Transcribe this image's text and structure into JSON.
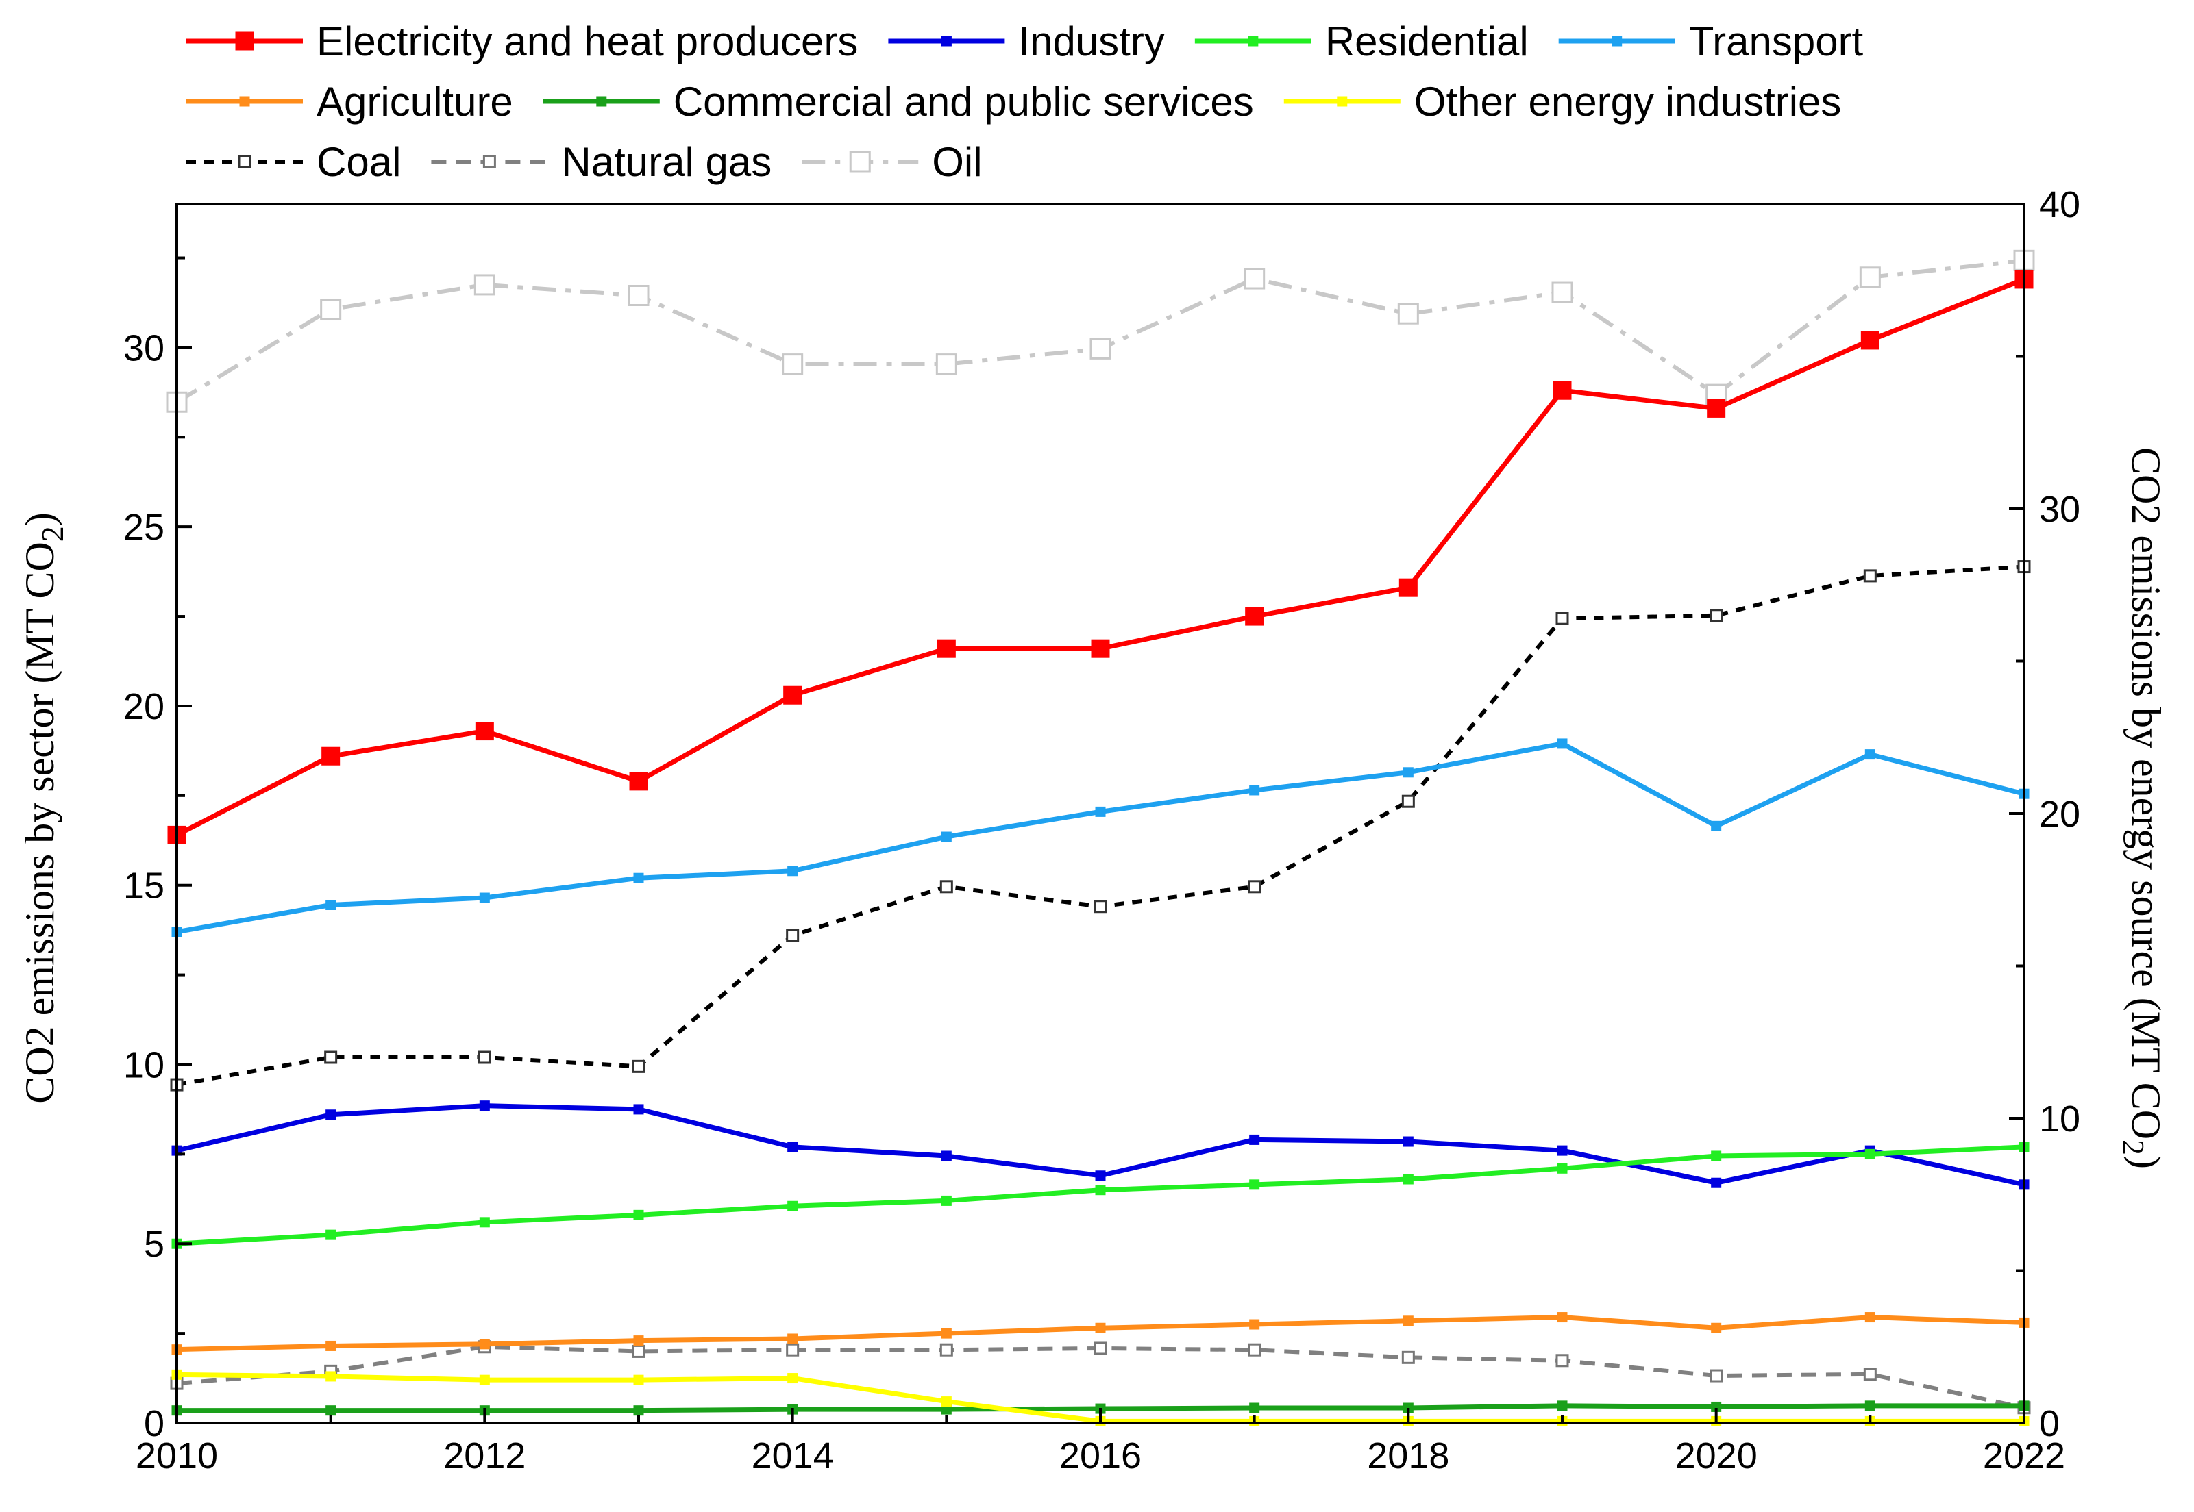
{
  "chart_data": {
    "type": "line",
    "x": [
      2010,
      2011,
      2012,
      2013,
      2014,
      2015,
      2016,
      2017,
      2018,
      2019,
      2020,
      2021,
      2022
    ],
    "x_ticks": [
      "2010",
      "2012",
      "2014",
      "2016",
      "2018",
      "2020",
      "2022"
    ],
    "xlim": [
      2010,
      2022
    ],
    "y_left": {
      "label_main": "CO2 emissions by sector (MT CO",
      "label_sub": "2",
      "label_close": ")",
      "ylim": [
        0,
        34
      ],
      "ticks": [
        "0",
        "5",
        "10",
        "15",
        "20",
        "25",
        "30"
      ]
    },
    "y_right": {
      "label_main": "CO2 emissions by energy source (MT CO",
      "label_sub": "2",
      "label_close": ")",
      "ylim": [
        0,
        40
      ],
      "ticks": [
        "0",
        "10",
        "20",
        "30",
        "40"
      ]
    },
    "legend_position": "top",
    "grid": false,
    "series": [
      {
        "name": "Electricity and heat producers",
        "axis": "left",
        "color": "#ff0000",
        "dash": "solid",
        "marker": "filled-square-large",
        "values": [
          16.4,
          18.6,
          19.3,
          17.9,
          20.3,
          21.6,
          21.6,
          22.5,
          23.3,
          28.8,
          28.3,
          30.2,
          31.9
        ]
      },
      {
        "name": "Industry",
        "axis": "left",
        "color": "#0000e0",
        "dash": "solid",
        "marker": "filled-square",
        "values": [
          7.6,
          8.6,
          8.85,
          8.75,
          7.7,
          7.45,
          6.9,
          7.9,
          7.85,
          7.6,
          6.7,
          7.6,
          6.65
        ]
      },
      {
        "name": "Residential",
        "axis": "left",
        "color": "#22ee22",
        "dash": "solid",
        "marker": "filled-square",
        "values": [
          5.0,
          5.25,
          5.6,
          5.8,
          6.05,
          6.2,
          6.5,
          6.65,
          6.8,
          7.1,
          7.45,
          7.5,
          7.7
        ]
      },
      {
        "name": "Transport",
        "axis": "left",
        "color": "#1ea1f0",
        "dash": "solid",
        "marker": "filled-square",
        "values": [
          13.7,
          14.45,
          14.65,
          15.2,
          15.4,
          16.35,
          17.05,
          17.65,
          18.15,
          18.95,
          16.65,
          18.65,
          17.55
        ]
      },
      {
        "name": "Agriculture",
        "axis": "left",
        "color": "#ff8c1a",
        "dash": "solid",
        "marker": "filled-square",
        "values": [
          2.05,
          2.15,
          2.2,
          2.3,
          2.35,
          2.5,
          2.65,
          2.75,
          2.85,
          2.95,
          2.65,
          2.95,
          2.8
        ]
      },
      {
        "name": "Commercial and public services",
        "axis": "left",
        "color": "#1aa01a",
        "dash": "solid",
        "marker": "filled-square",
        "values": [
          0.35,
          0.35,
          0.35,
          0.35,
          0.38,
          0.38,
          0.4,
          0.42,
          0.42,
          0.48,
          0.45,
          0.48,
          0.48
        ]
      },
      {
        "name": "Other energy industries",
        "axis": "left",
        "color": "#ffff00",
        "dash": "solid",
        "marker": "filled-square",
        "values": [
          1.35,
          1.3,
          1.2,
          1.2,
          1.25,
          0.6,
          0.05,
          0.05,
          0.05,
          0.05,
          0.05,
          0.05,
          0.05
        ]
      },
      {
        "name": "Coal",
        "axis": "right",
        "color": "#000000",
        "dash": "dotted",
        "marker": "open-square",
        "values": [
          11.1,
          12.0,
          12.0,
          11.7,
          16.0,
          17.6,
          16.95,
          17.6,
          20.4,
          26.4,
          26.5,
          27.8,
          28.1
        ]
      },
      {
        "name": "Natural gas",
        "axis": "right",
        "color": "#808080",
        "dash": "dashed",
        "marker": "open-square",
        "values": [
          1.3,
          1.7,
          2.5,
          2.35,
          2.4,
          2.4,
          2.45,
          2.4,
          2.15,
          2.05,
          1.55,
          1.6,
          0.5
        ]
      },
      {
        "name": "Oil",
        "axis": "right",
        "color": "#c8c8c8",
        "dash": "dashdot",
        "marker": "open-square-large",
        "values": [
          33.5,
          36.55,
          37.35,
          37.0,
          34.75,
          34.75,
          35.25,
          37.55,
          36.4,
          37.1,
          33.75,
          37.6,
          38.15
        ]
      }
    ],
    "legend_rows": [
      [
        "Electricity and heat producers",
        "Industry",
        "Residential",
        "Transport"
      ],
      [
        "Agriculture",
        "Commercial and public services",
        "Other energy industries"
      ],
      [
        "Coal",
        "Natural gas",
        "Oil"
      ]
    ]
  }
}
